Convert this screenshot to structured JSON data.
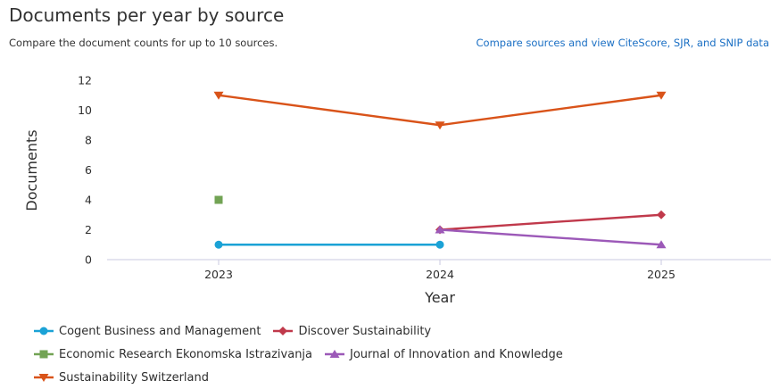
{
  "header": {
    "title": "Documents per year by source",
    "subtitle": "Compare the document counts for up to 10 sources.",
    "link": "Compare sources and view CiteScore, SJR, and SNIP data"
  },
  "chart_data": {
    "type": "line",
    "title": "Documents per year by source",
    "xlabel": "Year",
    "ylabel": "Documents",
    "categories": [
      "2023",
      "2024",
      "2025"
    ],
    "yticks": [
      "0",
      "2",
      "4",
      "6",
      "8",
      "10",
      "12"
    ],
    "ylim": [
      0,
      12
    ],
    "grid": false,
    "legend_position": "bottom",
    "series": [
      {
        "name": "Cogent Business and Management",
        "color": "#1ba2d6",
        "marker": "circle",
        "values": [
          1,
          1,
          null
        ]
      },
      {
        "name": "Discover Sustainability",
        "color": "#c0394b",
        "marker": "diamond",
        "values": [
          null,
          2,
          3
        ]
      },
      {
        "name": "Economic Research Ekonomska Istrazivanja",
        "color": "#72a354",
        "marker": "square",
        "values": [
          4,
          null,
          null
        ]
      },
      {
        "name": "Journal of Innovation and Knowledge",
        "color": "#9c59b8",
        "marker": "triangle-up",
        "values": [
          null,
          2,
          1
        ]
      },
      {
        "name": "Sustainability Switzerland",
        "color": "#d95319",
        "marker": "triangle-down",
        "values": [
          11,
          9,
          11
        ]
      }
    ]
  }
}
